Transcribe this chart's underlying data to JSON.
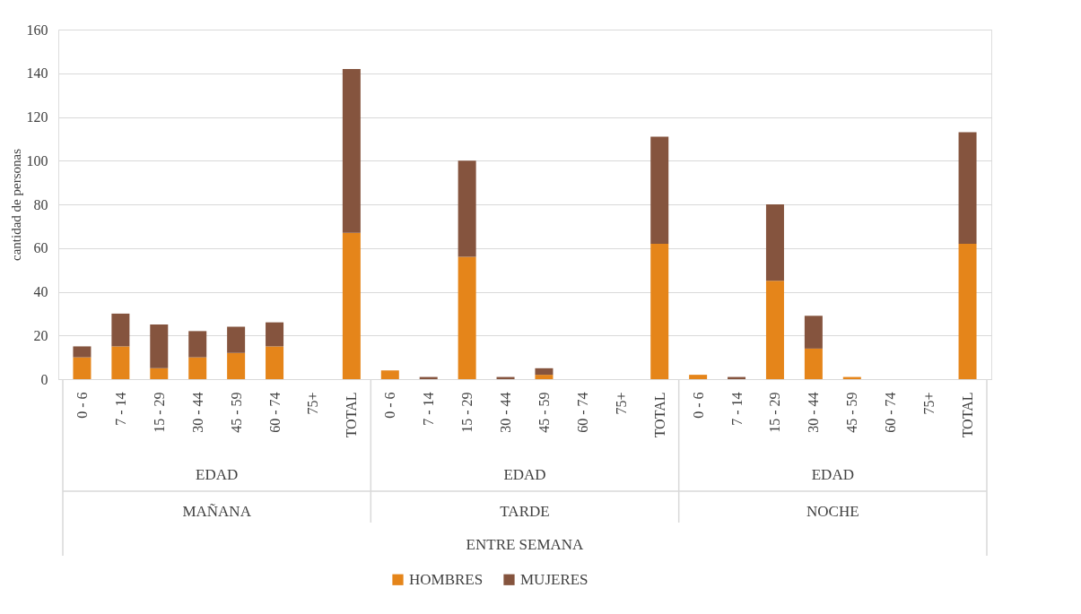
{
  "chart_data": {
    "type": "bar",
    "stacked": true,
    "ylabel": "cantidad de personas",
    "categories": [
      "0 - 6",
      "7 - 14",
      "15 - 29",
      "30 - 44",
      "45 - 59",
      "60 - 74",
      "75+",
      "TOTAL",
      "0 - 6",
      "7 - 14",
      "15 - 29",
      "30 - 44",
      "45 - 59",
      "60 - 74",
      "75+",
      "TOTAL",
      "0 - 6",
      "7 - 14",
      "15 - 29",
      "30 - 44",
      "45 - 59",
      "60 - 74",
      "75+",
      "TOTAL"
    ],
    "series": [
      {
        "name": "HOMBRES",
        "color": "#e5851a",
        "values": [
          10,
          15,
          5,
          10,
          12,
          15,
          0,
          67,
          4,
          0,
          56,
          0,
          2,
          0,
          0,
          62,
          2,
          0,
          45,
          14,
          1,
          0,
          0,
          62
        ]
      },
      {
        "name": "MUJERES",
        "color": "#85543e",
        "values": [
          5,
          15,
          20,
          12,
          12,
          11,
          0,
          75,
          0,
          1,
          44,
          1,
          3,
          0,
          0,
          49,
          0,
          1,
          35,
          15,
          0,
          0,
          0,
          51
        ]
      }
    ],
    "annotations": [
      "EDAD",
      "MAÑANA",
      "EDAD",
      "TARDE",
      "EDAD",
      "NOCHE",
      "ENTRE SEMANA"
    ],
    "ylim": [
      0,
      160
    ],
    "yticks": [
      0,
      20,
      40,
      60,
      80,
      100,
      120,
      140,
      160
    ],
    "grid": "y",
    "legend": "bottom"
  }
}
